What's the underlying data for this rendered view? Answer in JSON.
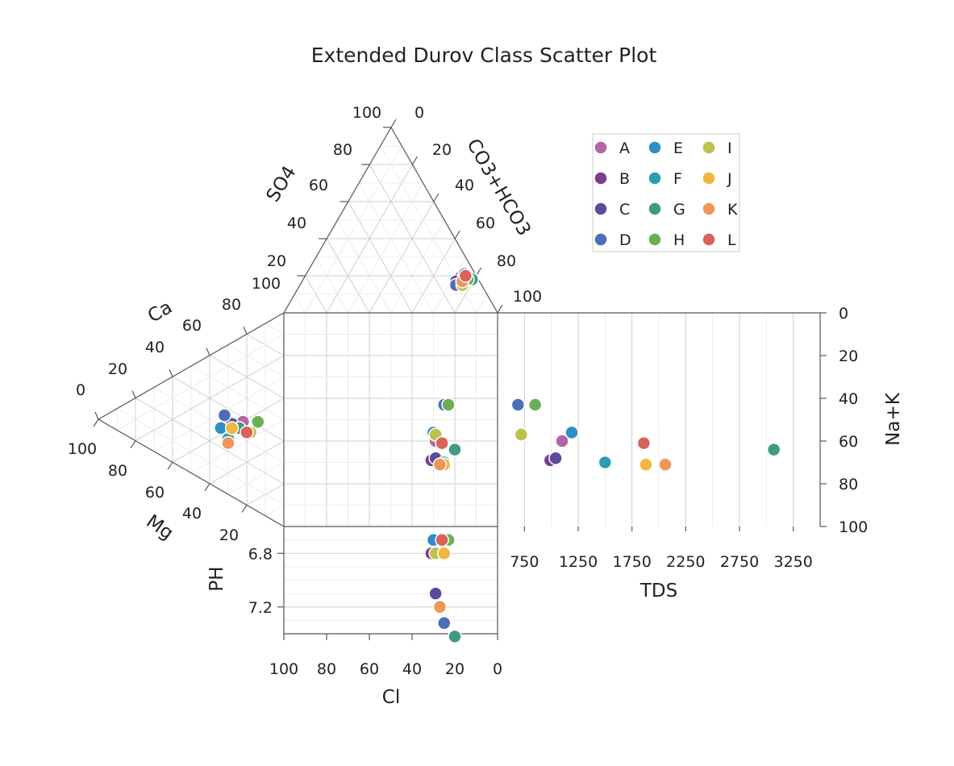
{
  "chart_data": {
    "type": "scatter",
    "title": "Extended Durov Class Scatter Plot",
    "axes": {
      "cation_ternary": {
        "labels": [
          "Ca",
          "Mg"
        ],
        "ca_ticks": [
          "100",
          "80",
          "60",
          "40",
          "20",
          "0"
        ],
        "mg_ticks": [
          "100",
          "80",
          "60",
          "40",
          "20"
        ]
      },
      "anion_ternary": {
        "labels": [
          "SO4",
          "CO3+HCO3"
        ],
        "so4_ticks": [
          "100",
          "80",
          "60",
          "40",
          "20"
        ],
        "co3_ticks": [
          "0",
          "20",
          "40",
          "60",
          "80",
          "100"
        ],
        "extra_tick": "100"
      },
      "cl": {
        "label": "Cl",
        "ticks": [
          "100",
          "80",
          "60",
          "40",
          "20",
          "0"
        ],
        "range": [
          100,
          0
        ]
      },
      "nak": {
        "label": "Na+K",
        "ticks": [
          "0",
          "20",
          "40",
          "60",
          "80",
          "100"
        ],
        "range": [
          0,
          100
        ]
      },
      "tds": {
        "label": "TDS",
        "ticks": [
          "750",
          "1250",
          "1750",
          "2250",
          "2750",
          "3250"
        ],
        "range": [
          500,
          3500
        ]
      },
      "ph": {
        "label": "PH",
        "ticks": [
          "6.8",
          "7.2"
        ],
        "range": [
          6.6,
          7.4
        ]
      }
    },
    "legend": {
      "position": "top-right",
      "columns": 3
    },
    "series": [
      {
        "name": "A",
        "color": "#b565a7",
        "cl": 29,
        "nak": 60,
        "tds": 1100,
        "ph": 6.8,
        "ca": 38,
        "mg": 22,
        "co3": 73,
        "so4": 17
      },
      {
        "name": "B",
        "color": "#7b3f8f",
        "cl": 31,
        "nak": 69,
        "tds": 990,
        "ph": 6.8,
        "ca": 32,
        "mg": 28,
        "co3": 73,
        "so4": 19
      },
      {
        "name": "C",
        "color": "#5c4a9c",
        "cl": 29,
        "nak": 68,
        "tds": 1040,
        "ph": 7.1,
        "ca": 34,
        "mg": 28,
        "co3": 72,
        "so4": 17
      },
      {
        "name": "D",
        "color": "#4a6fb8",
        "cl": 25,
        "nak": 43,
        "tds": 690,
        "ph": 7.32,
        "ca": 36,
        "mg": 32,
        "co3": 73,
        "so4": 15
      },
      {
        "name": "E",
        "color": "#2e8fc8",
        "cl": 30,
        "nak": 56,
        "tds": 1190,
        "ph": 6.7,
        "ca": 29,
        "mg": 34,
        "co3": 74,
        "so4": 21
      },
      {
        "name": "F",
        "color": "#2a9db0",
        "cl": 25,
        "nak": 70,
        "tds": 1500,
        "ph": 6.7,
        "ca": 26,
        "mg": 30,
        "co3": 77,
        "so4": 19
      },
      {
        "name": "G",
        "color": "#3f9a80",
        "cl": 20,
        "nak": 64,
        "tds": 3070,
        "ph": 7.42,
        "ca": 34,
        "mg": 24,
        "co3": 79,
        "so4": 18
      },
      {
        "name": "H",
        "color": "#6aaf55",
        "cl": 23,
        "nak": 43,
        "tds": 850,
        "ph": 6.7,
        "ca": 42,
        "mg": 14,
        "co3": 77,
        "so4": 18
      },
      {
        "name": "I",
        "color": "#b9c34e",
        "cl": 29,
        "nak": 57,
        "tds": 720,
        "ph": 6.8,
        "ca": 35,
        "mg": 18,
        "co3": 76,
        "so4": 15
      },
      {
        "name": "J",
        "color": "#f0b63f",
        "cl": 25,
        "nak": 71,
        "tds": 1880,
        "ph": 6.8,
        "ca": 32,
        "mg": 28,
        "co3": 75,
        "so4": 17
      },
      {
        "name": "K",
        "color": "#ee9758",
        "cl": 27,
        "nak": 71,
        "tds": 2060,
        "ph": 7.2,
        "ca": 24,
        "mg": 30,
        "co3": 75,
        "so4": 17
      },
      {
        "name": "L",
        "color": "#d9625a",
        "cl": 26,
        "nak": 61,
        "tds": 1860,
        "ph": 6.7,
        "ca": 34,
        "mg": 20,
        "co3": 75,
        "so4": 20
      }
    ]
  }
}
